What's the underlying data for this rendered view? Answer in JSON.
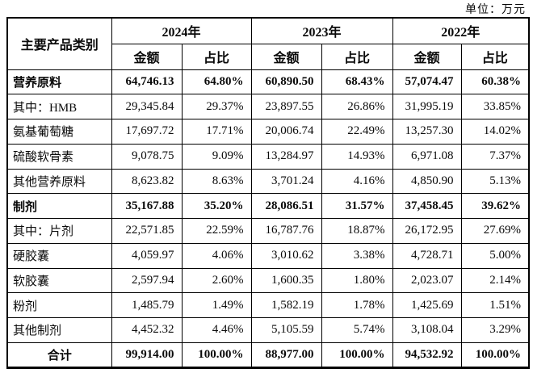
{
  "unit_label": "单位：万元",
  "table": {
    "header": {
      "category": "主要产品类别",
      "year_groups": [
        {
          "year": "2024年",
          "cols": [
            "金额",
            "占比"
          ]
        },
        {
          "year": "2023年",
          "cols": [
            "金额",
            "占比"
          ]
        },
        {
          "year": "2022年",
          "cols": [
            "金额",
            "占比"
          ]
        }
      ]
    },
    "rows": [
      {
        "label": "营养原料",
        "bold": true,
        "values": [
          "64,746.13",
          "64.80%",
          "60,890.50",
          "68.43%",
          "57,074.47",
          "60.38%"
        ]
      },
      {
        "label": "其中：HMB",
        "values": [
          "29,345.84",
          "29.37%",
          "23,897.55",
          "26.86%",
          "31,995.19",
          "33.85%"
        ]
      },
      {
        "label": "氨基葡萄糖",
        "values": [
          "17,697.72",
          "17.71%",
          "20,006.74",
          "22.49%",
          "13,257.30",
          "14.02%"
        ]
      },
      {
        "label": "硫酸软骨素",
        "values": [
          "9,078.75",
          "9.09%",
          "13,284.97",
          "14.93%",
          "6,971.08",
          "7.37%"
        ]
      },
      {
        "label": "其他营养原料",
        "values": [
          "8,623.82",
          "8.63%",
          "3,701.24",
          "4.16%",
          "4,850.90",
          "5.13%"
        ]
      },
      {
        "label": "制剂",
        "bold": true,
        "values": [
          "35,167.88",
          "35.20%",
          "28,086.51",
          "31.57%",
          "37,458.45",
          "39.62%"
        ]
      },
      {
        "label": "其中：片剂",
        "values": [
          "22,571.85",
          "22.59%",
          "16,787.76",
          "18.87%",
          "26,172.95",
          "27.69%"
        ]
      },
      {
        "label": "硬胶囊",
        "values": [
          "4,059.97",
          "4.06%",
          "3,010.62",
          "3.38%",
          "4,728.71",
          "5.00%"
        ]
      },
      {
        "label": "软胶囊",
        "values": [
          "2,597.94",
          "2.60%",
          "1,600.35",
          "1.80%",
          "2,023.07",
          "2.14%"
        ]
      },
      {
        "label": "粉剂",
        "values": [
          "1,485.79",
          "1.49%",
          "1,582.19",
          "1.78%",
          "1,425.69",
          "1.51%"
        ]
      },
      {
        "label": "其他制剂",
        "values": [
          "4,452.32",
          "4.46%",
          "5,105.59",
          "5.74%",
          "3,108.04",
          "3.29%"
        ]
      },
      {
        "label": "合计",
        "bold": true,
        "center": true,
        "values": [
          "99,914.00",
          "100.00%",
          "88,977.00",
          "100.00%",
          "94,532.92",
          "100.00%"
        ]
      }
    ]
  }
}
